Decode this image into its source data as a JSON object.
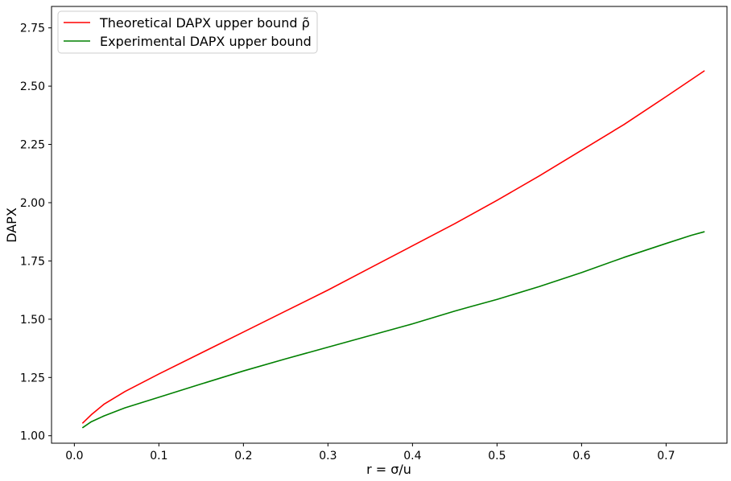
{
  "chart_data": {
    "type": "line",
    "xlabel": "r = σ/u",
    "ylabel": "DAPX",
    "xlim": [
      -0.027,
      0.772
    ],
    "ylim": [
      0.968,
      2.842
    ],
    "xticks": [
      0.0,
      0.1,
      0.2,
      0.3,
      0.4,
      0.5,
      0.6,
      0.7
    ],
    "xtick_labels": [
      "0.0",
      "0.1",
      "0.2",
      "0.3",
      "0.4",
      "0.5",
      "0.6",
      "0.7"
    ],
    "yticks": [
      1.0,
      1.25,
      1.5,
      1.75,
      2.0,
      2.25,
      2.5,
      2.75
    ],
    "ytick_labels": [
      "1.00",
      "1.25",
      "1.50",
      "1.75",
      "2.00",
      "2.25",
      "2.50",
      "2.75"
    ],
    "grid": false,
    "legend_position": "top-left",
    "series": [
      {
        "name": "Theoretical DAPX upper bound ρ̃",
        "color": "#ff0000",
        "x": [
          0.01,
          0.02,
          0.035,
          0.06,
          0.1,
          0.15,
          0.2,
          0.25,
          0.3,
          0.35,
          0.4,
          0.45,
          0.5,
          0.55,
          0.6,
          0.65,
          0.7,
          0.745
        ],
        "y": [
          1.055,
          1.09,
          1.135,
          1.19,
          1.265,
          1.355,
          1.445,
          1.535,
          1.625,
          1.72,
          1.815,
          1.91,
          2.01,
          2.115,
          2.225,
          2.335,
          2.455,
          2.565
        ]
      },
      {
        "name": "Experimental DAPX upper bound",
        "color": "#008000",
        "x": [
          0.01,
          0.02,
          0.035,
          0.06,
          0.1,
          0.15,
          0.2,
          0.25,
          0.3,
          0.35,
          0.4,
          0.45,
          0.47,
          0.5,
          0.55,
          0.6,
          0.65,
          0.7,
          0.73,
          0.745
        ],
        "y": [
          1.035,
          1.06,
          1.085,
          1.12,
          1.165,
          1.222,
          1.278,
          1.33,
          1.38,
          1.43,
          1.48,
          1.535,
          1.555,
          1.585,
          1.64,
          1.7,
          1.765,
          1.825,
          1.86,
          1.875
        ]
      }
    ]
  }
}
